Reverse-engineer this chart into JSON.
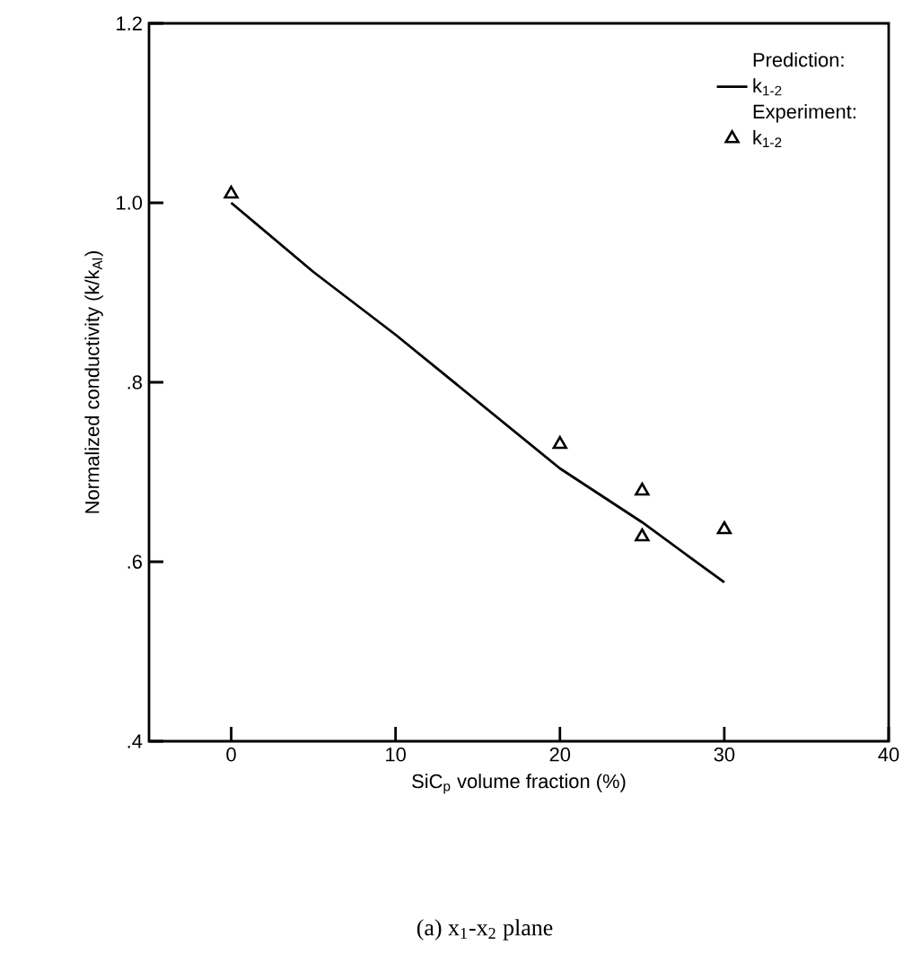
{
  "chart_data": {
    "type": "line",
    "xlabel": "SiC$_{p}$ volume fraction (%)",
    "ylabel": "Normalized conductivity (k/k$_{Al}$)",
    "x": [
      0,
      5,
      10,
      20,
      25,
      30
    ],
    "series": [
      {
        "name": "k$_{1-2}$",
        "color": "#000000",
        "marker": "none",
        "line_style": "solid",
        "values": [
          1.0,
          0.923,
          0.853,
          0.704,
          0.644,
          0.577
        ]
      },
      {
        "name": "k$_{1-2}$",
        "type": "scatter",
        "color": "#000000",
        "marker": "triangle",
        "x": [
          0,
          20,
          25,
          25,
          30
        ],
        "values": [
          1.01,
          0.731,
          0.679,
          0.628,
          0.636
        ]
      }
    ],
    "annotations": [
      "Prediction:",
      "Experiment:",
      "(a) x$_{1}$-x$_{2}$ plane"
    ],
    "xlim": [
      -5,
      40
    ],
    "xticks": [
      0,
      10,
      20,
      30,
      40
    ],
    "ylim": [
      0.4,
      1.2
    ],
    "yticks": [
      {
        "value": 0.4,
        "label": ".4"
      },
      {
        "value": 0.6,
        "label": ".6"
      },
      {
        "value": 0.8,
        "label": ".8"
      },
      {
        "value": 1.0,
        "label": "1.0"
      },
      {
        "value": 1.2,
        "label": "1.2"
      }
    ],
    "grid": false,
    "legend": "top right"
  }
}
